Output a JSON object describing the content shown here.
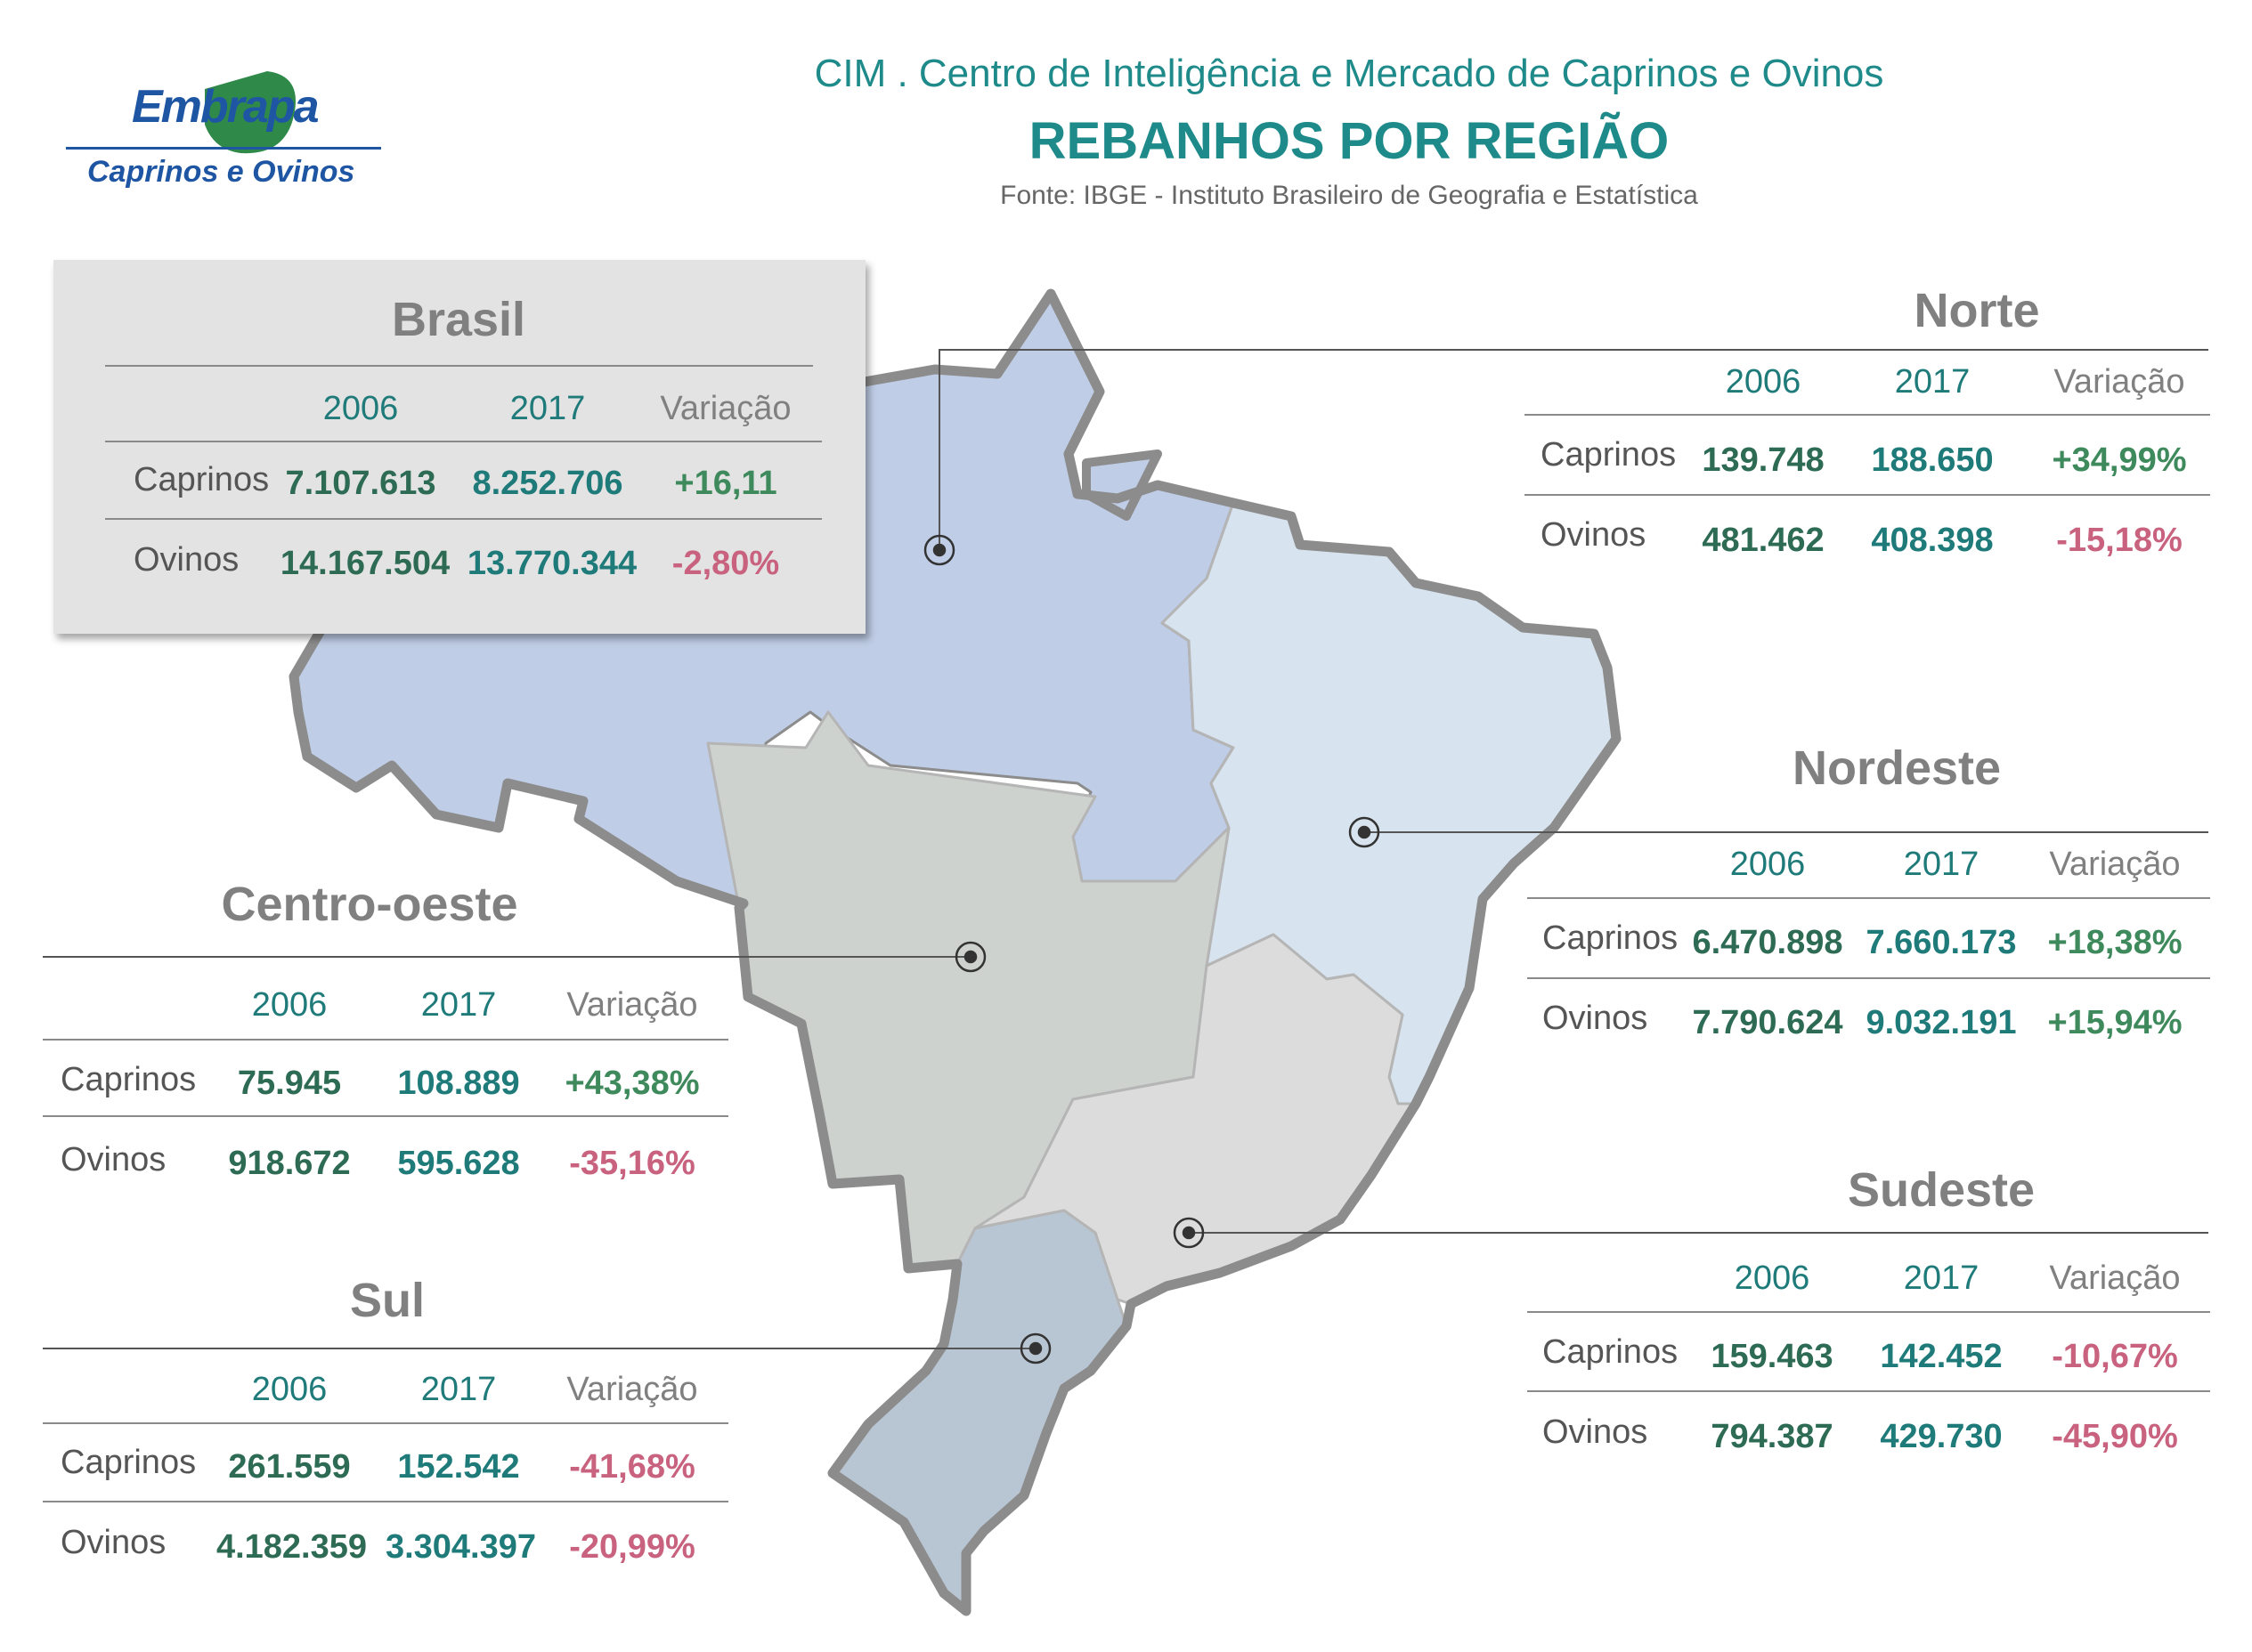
{
  "logo": {
    "word": "Embrapa",
    "subtitle": "Caprinos e Ovinos"
  },
  "header": {
    "org": "CIM . Centro de Inteligência e Mercado de Caprinos e Ovinos",
    "title": "REBANHOS POR REGIÃO",
    "source": "Fonte: IBGE - Instituto Brasileiro de Geografia e Estatística"
  },
  "colors": {
    "norte": "#bfcde6",
    "nordeste": "#d7e3ee",
    "centro_oeste": "#cdd2cf",
    "sudeste": "#dcdcdc",
    "sul": "#b8c5d2",
    "outline": "#8c8c8c",
    "positive": "#3f8a5c",
    "negative": "#c8627e",
    "teal": "#1f8a8a"
  },
  "columns": {
    "y2006": "2006",
    "y2017": "2017",
    "variation": "Variação"
  },
  "rows": {
    "caprinos": "Caprinos",
    "ovinos": "Ovinos"
  },
  "regions": {
    "brasil": {
      "name": "Brasil",
      "caprinos": [
        "7.107.613",
        "8.252.706",
        "+16,11"
      ],
      "ovinos": [
        "14.167.504",
        "13.770.344",
        "-2,80%"
      ]
    },
    "norte": {
      "name": "Norte",
      "caprinos": [
        "139.748",
        "188.650",
        "+34,99%"
      ],
      "ovinos": [
        "481.462",
        "408.398",
        "-15,18%"
      ]
    },
    "nordeste": {
      "name": "Nordeste",
      "caprinos": [
        "6.470.898",
        "7.660.173",
        "+18,38%"
      ],
      "ovinos": [
        "7.790.624",
        "9.032.191",
        "+15,94%"
      ]
    },
    "centro_oeste": {
      "name": "Centro-oeste",
      "caprinos": [
        "75.945",
        "108.889",
        "+43,38%"
      ],
      "ovinos": [
        "918.672",
        "595.628",
        "-35,16%"
      ]
    },
    "sudeste": {
      "name": "Sudeste",
      "caprinos": [
        "159.463",
        "142.452",
        "-10,67%"
      ],
      "ovinos": [
        "794.387",
        "429.730",
        "-45,90%"
      ]
    },
    "sul": {
      "name": "Sul",
      "caprinos": [
        "261.559",
        "152.542",
        "-41,68%"
      ],
      "ovinos": [
        "4.182.359",
        "3.304.397",
        "-20,99%"
      ]
    }
  }
}
